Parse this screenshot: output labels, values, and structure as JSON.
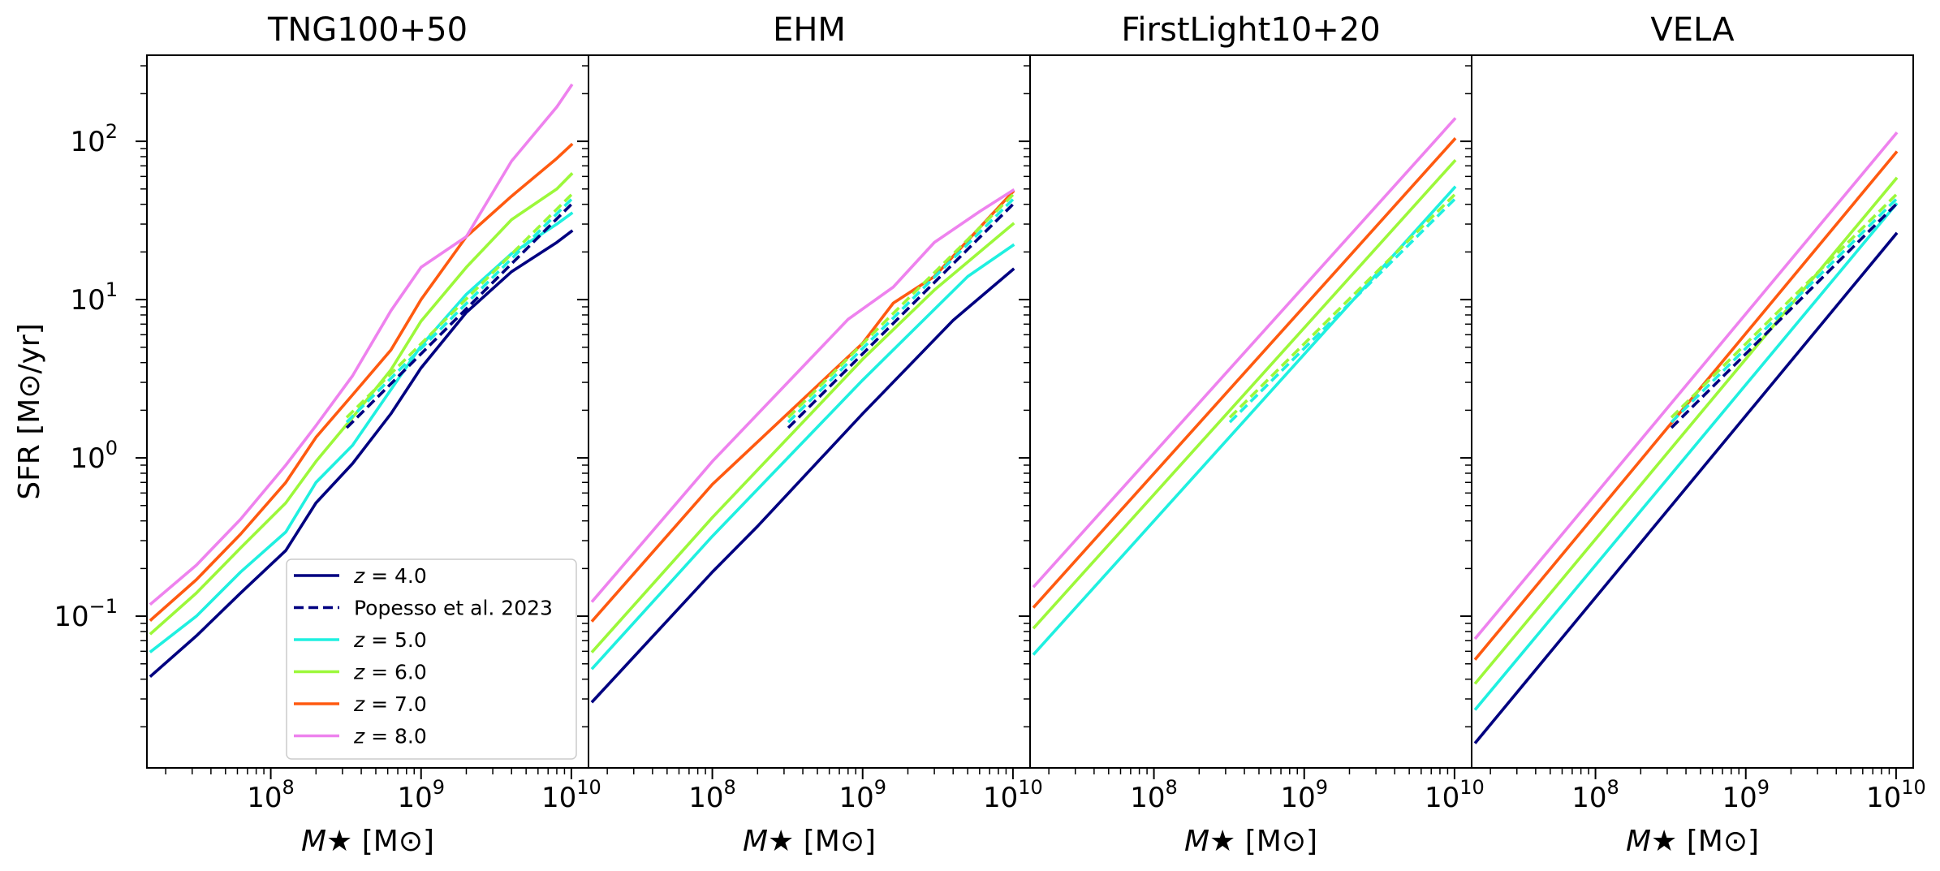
{
  "chart_data": {
    "type": "line",
    "ylabel_text": "SFR",
    "ylabel_unit": "[M⊙/yr]",
    "xlabel_var": "M★",
    "xlabel_unit": "[M⊙]",
    "xscale": "log",
    "yscale": "log",
    "xlim": [
      15000000.0,
      13000000000.0
    ],
    "ylim": [
      0.011,
      350
    ],
    "x_ticks": [
      {
        "value": 100000000.0,
        "base": "10",
        "exp": "8"
      },
      {
        "value": 1000000000.0,
        "base": "10",
        "exp": "9"
      },
      {
        "value": 10000000000.0,
        "base": "10",
        "exp": "10"
      }
    ],
    "y_ticks": [
      {
        "value": 0.1,
        "base": "10",
        "exp": "−1"
      },
      {
        "value": 1,
        "base": "10",
        "exp": "0"
      },
      {
        "value": 10,
        "base": "10",
        "exp": "1"
      },
      {
        "value": 100,
        "base": "10",
        "exp": "2"
      }
    ],
    "legend": {
      "location": "lower-right of first panel",
      "entries": [
        {
          "var": "z",
          "eq": " = 4.0",
          "color": "#000080",
          "dashed": false
        },
        {
          "label": "Popesso et al. 2023",
          "color": "#000080",
          "dashed": true
        },
        {
          "var": "z",
          "eq": " = 5.0",
          "color": "#1ff0e0",
          "dashed": false
        },
        {
          "var": "z",
          "eq": " = 6.0",
          "color": "#9cf83a",
          "dashed": false
        },
        {
          "var": "z",
          "eq": " = 7.0",
          "color": "#ff5a10",
          "dashed": false
        },
        {
          "var": "z",
          "eq": " = 8.0",
          "color": "#ee82ee",
          "dashed": false
        }
      ]
    },
    "panels": [
      {
        "title": "TNG100+50",
        "series": [
          {
            "name": "z = 4.0",
            "color": "#000080",
            "dashed": false,
            "x": [
              16000000.0,
              32000000.0,
              63000000.0,
              126000000.0,
              200000000.0,
              350000000.0,
              630000000.0,
              1000000000.0,
              2000000000.0,
              4000000000.0,
              8000000000.0,
              10000000000.0
            ],
            "y": [
              0.042,
              0.075,
              0.14,
              0.26,
              0.52,
              0.92,
              1.9,
              3.7,
              8.3,
              15,
              23,
              27
            ]
          },
          {
            "name": "z = 5.0",
            "color": "#1ff0e0",
            "dashed": false,
            "x": [
              16000000.0,
              32000000.0,
              63000000.0,
              126000000.0,
              200000000.0,
              350000000.0,
              630000000.0,
              1000000000.0,
              2000000000.0,
              4000000000.0,
              8000000000.0,
              10000000000.0
            ],
            "y": [
              0.06,
              0.1,
              0.19,
              0.34,
              0.7,
              1.2,
              2.7,
              5.1,
              10.8,
              19.5,
              30,
              35
            ]
          },
          {
            "name": "z = 6.0",
            "color": "#9cf83a",
            "dashed": false,
            "x": [
              16000000.0,
              32000000.0,
              63000000.0,
              126000000.0,
              200000000.0,
              350000000.0,
              630000000.0,
              1000000000.0,
              2000000000.0,
              4000000000.0,
              8000000000.0,
              10000000000.0
            ],
            "y": [
              0.078,
              0.14,
              0.27,
              0.52,
              0.95,
              1.8,
              3.6,
              7.3,
              16,
              32,
              50,
              62
            ]
          },
          {
            "name": "z = 7.0",
            "color": "#ff5a10",
            "dashed": false,
            "x": [
              16000000.0,
              32000000.0,
              63000000.0,
              126000000.0,
              200000000.0,
              350000000.0,
              630000000.0,
              1000000000.0,
              2000000000.0,
              4000000000.0,
              8000000000.0,
              10000000000.0
            ],
            "y": [
              0.095,
              0.17,
              0.33,
              0.7,
              1.35,
              2.5,
              4.8,
              10,
              25,
              45,
              78,
              95
            ]
          },
          {
            "name": "z = 8.0",
            "color": "#ee82ee",
            "dashed": false,
            "x": [
              16000000.0,
              32000000.0,
              63000000.0,
              126000000.0,
              200000000.0,
              350000000.0,
              630000000.0,
              1000000000.0,
              2000000000.0,
              4000000000.0,
              8000000000.0,
              10000000000.0
            ],
            "y": [
              0.12,
              0.21,
              0.41,
              0.9,
              1.6,
              3.3,
              8.5,
              16,
              25,
              75,
              165,
              225
            ]
          },
          {
            "name": "Popesso et al. 2023 (z=4)",
            "color": "#000080",
            "dashed": true,
            "x": [
              320000000.0,
              10000000000.0
            ],
            "y": [
              1.55,
              40
            ]
          },
          {
            "name": "Popesso et al. 2023 (z=5)",
            "color": "#1ff0e0",
            "dashed": true,
            "x": [
              320000000.0,
              10000000000.0
            ],
            "y": [
              1.68,
              43
            ]
          },
          {
            "name": "Popesso et al. 2023 (z=6)",
            "color": "#9cf83a",
            "dashed": true,
            "x": [
              320000000.0,
              10000000000.0
            ],
            "y": [
              1.8,
              46
            ]
          }
        ]
      },
      {
        "title": "EHM",
        "series": [
          {
            "name": "z = 4.0",
            "color": "#000080",
            "dashed": false,
            "x": [
              16000000.0,
              100000000.0,
              200000000.0,
              1000000000.0,
              4000000000.0,
              10000000000.0
            ],
            "y": [
              0.029,
              0.19,
              0.37,
              1.9,
              7.4,
              15.5
            ]
          },
          {
            "name": "z = 5.0",
            "color": "#1ff0e0",
            "dashed": false,
            "x": [
              16000000.0,
              100000000.0,
              1000000000.0,
              5000000000.0,
              10000000000.0
            ],
            "y": [
              0.047,
              0.32,
              3.1,
              14,
              22
            ]
          },
          {
            "name": "z = 6.0",
            "color": "#9cf83a",
            "dashed": false,
            "x": [
              16000000.0,
              100000000.0,
              1000000000.0,
              3000000000.0,
              10000000000.0
            ],
            "y": [
              0.06,
              0.42,
              4.2,
              11.5,
              30
            ]
          },
          {
            "name": "z = 7.0",
            "color": "#ff5a10",
            "dashed": false,
            "x": [
              16000000.0,
              100000000.0,
              1000000000.0,
              1600000000.0,
              3000000000.0,
              10000000000.0
            ],
            "y": [
              0.094,
              0.68,
              5.3,
              9.5,
              14,
              48
            ]
          },
          {
            "name": "z = 8.0",
            "color": "#ee82ee",
            "dashed": false,
            "x": [
              16000000.0,
              100000000.0,
              800000000.0,
              1600000000.0,
              3000000000.0,
              6000000000.0,
              10000000000.0
            ],
            "y": [
              0.125,
              0.95,
              7.5,
              12,
              23,
              36,
              49
            ]
          },
          {
            "name": "Popesso et al. 2023 (z=4)",
            "color": "#000080",
            "dashed": true,
            "x": [
              320000000.0,
              10000000000.0
            ],
            "y": [
              1.55,
              40
            ]
          },
          {
            "name": "Popesso et al. 2023 (z=5)",
            "color": "#1ff0e0",
            "dashed": true,
            "x": [
              320000000.0,
              10000000000.0
            ],
            "y": [
              1.68,
              43
            ]
          },
          {
            "name": "Popesso et al. 2023 (z=6)",
            "color": "#9cf83a",
            "dashed": true,
            "x": [
              320000000.0,
              10000000000.0
            ],
            "y": [
              1.8,
              46
            ]
          }
        ]
      },
      {
        "title": "FirstLight10+20",
        "series": [
          {
            "name": "z = 5.0",
            "color": "#1ff0e0",
            "dashed": false,
            "x": [
              16000000.0,
              10000000000.0
            ],
            "y": [
              0.058,
              51
            ]
          },
          {
            "name": "z = 6.0",
            "color": "#9cf83a",
            "dashed": false,
            "x": [
              16000000.0,
              10000000000.0
            ],
            "y": [
              0.085,
              75
            ]
          },
          {
            "name": "z = 7.0",
            "color": "#ff5a10",
            "dashed": false,
            "x": [
              16000000.0,
              10000000000.0
            ],
            "y": [
              0.115,
              103
            ]
          },
          {
            "name": "z = 8.0",
            "color": "#ee82ee",
            "dashed": false,
            "x": [
              16000000.0,
              10000000000.0
            ],
            "y": [
              0.155,
              138
            ]
          },
          {
            "name": "Popesso et al. 2023 (z=5)",
            "color": "#1ff0e0",
            "dashed": true,
            "x": [
              320000000.0,
              10000000000.0
            ],
            "y": [
              1.68,
              43
            ]
          },
          {
            "name": "Popesso et al. 2023 (z=6)",
            "color": "#9cf83a",
            "dashed": true,
            "x": [
              320000000.0,
              10000000000.0
            ],
            "y": [
              1.8,
              46
            ]
          }
        ]
      },
      {
        "title": "VELA",
        "series": [
          {
            "name": "z = 4.0",
            "color": "#000080",
            "dashed": false,
            "x": [
              16000000.0,
              10000000000.0
            ],
            "y": [
              0.016,
              26
            ]
          },
          {
            "name": "z = 5.0",
            "color": "#1ff0e0",
            "dashed": false,
            "x": [
              16000000.0,
              10000000000.0
            ],
            "y": [
              0.026,
              40
            ]
          },
          {
            "name": "z = 6.0",
            "color": "#9cf83a",
            "dashed": false,
            "x": [
              16000000.0,
              10000000000.0
            ],
            "y": [
              0.038,
              58
            ]
          },
          {
            "name": "z = 7.0",
            "color": "#ff5a10",
            "dashed": false,
            "x": [
              16000000.0,
              10000000000.0
            ],
            "y": [
              0.054,
              85
            ]
          },
          {
            "name": "z = 8.0",
            "color": "#ee82ee",
            "dashed": false,
            "x": [
              16000000.0,
              10000000000.0
            ],
            "y": [
              0.073,
              112
            ]
          },
          {
            "name": "Popesso et al. 2023 (z=4)",
            "color": "#000080",
            "dashed": true,
            "x": [
              320000000.0,
              10000000000.0
            ],
            "y": [
              1.55,
              40
            ]
          },
          {
            "name": "Popesso et al. 2023 (z=5)",
            "color": "#1ff0e0",
            "dashed": true,
            "x": [
              320000000.0,
              10000000000.0
            ],
            "y": [
              1.68,
              43
            ]
          },
          {
            "name": "Popesso et al. 2023 (z=6)",
            "color": "#9cf83a",
            "dashed": true,
            "x": [
              320000000.0,
              10000000000.0
            ],
            "y": [
              1.8,
              46
            ]
          }
        ]
      }
    ]
  }
}
